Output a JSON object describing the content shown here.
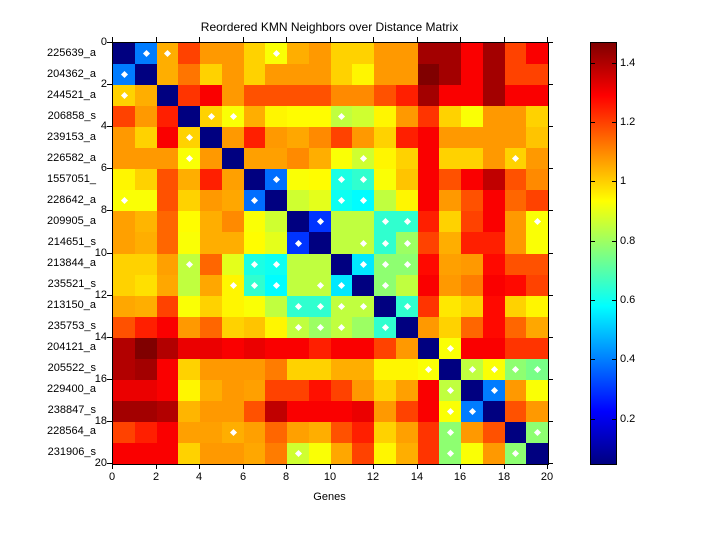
{
  "figure": {
    "title": "Reordered KMN Neighbors over Distance Matrix"
  },
  "axes": {
    "xlabel": "Genes",
    "x_tick_labels": [
      "0",
      "2",
      "4",
      "6",
      "8",
      "10",
      "12",
      "14",
      "16",
      "18",
      "20"
    ],
    "x_tick_values": [
      0,
      2,
      4,
      6,
      8,
      10,
      12,
      14,
      16,
      18,
      20
    ],
    "y_tick_labels": [
      "0",
      "2",
      "4",
      "6",
      "8",
      "10",
      "12",
      "14",
      "16",
      "18",
      "20"
    ],
    "y_tick_values": [
      0,
      2,
      4,
      6,
      8,
      10,
      12,
      14,
      16,
      18,
      20
    ]
  },
  "colorbar": {
    "tick_labels": [
      "1.4",
      "1.2",
      "1",
      "0.8",
      "0.6",
      "0.4",
      "0.2"
    ],
    "tick_values": [
      1.4,
      1.2,
      1.0,
      0.8,
      0.6,
      0.4,
      0.2
    ],
    "vmin": 0.05,
    "vmax": 1.47,
    "colormap": "jet"
  },
  "chart_data": {
    "type": "heatmap",
    "title": "Reordered KMN Neighbors over Distance Matrix",
    "xlabel": "Genes",
    "colormap": "jet",
    "clim": [
      0.05,
      1.47
    ],
    "marker_color": "#ffffff",
    "row_labels": [
      "225639_a",
      "204362_a",
      "244521_a",
      "206858_s",
      "239153_a",
      "226582_a",
      "1557051_",
      "228642_a",
      "209905_a",
      "214651_s",
      "213844_a",
      "235521_s",
      "213150_a",
      "235753_s",
      "204121_a",
      "205522_s",
      "229400_a",
      "238847_s",
      "228564_a",
      "231906_s"
    ],
    "values": [
      [
        0.05,
        0.4,
        1.05,
        1.2,
        1.08,
        1.08,
        1.0,
        0.93,
        1.05,
        1.08,
        1.0,
        1.0,
        1.08,
        1.08,
        1.42,
        1.42,
        1.3,
        1.42,
        1.2,
        1.3
      ],
      [
        0.4,
        0.05,
        1.05,
        1.13,
        1.0,
        1.08,
        1.0,
        1.08,
        1.08,
        1.08,
        1.0,
        0.95,
        1.08,
        1.08,
        1.47,
        1.42,
        1.3,
        1.42,
        1.2,
        1.2
      ],
      [
        1.0,
        1.05,
        0.05,
        1.22,
        1.3,
        1.08,
        1.18,
        1.18,
        1.18,
        1.18,
        1.1,
        1.1,
        1.18,
        1.25,
        1.42,
        1.3,
        1.3,
        1.42,
        1.3,
        1.3
      ],
      [
        1.2,
        1.08,
        1.25,
        0.05,
        1.0,
        0.93,
        1.05,
        0.95,
        0.94,
        0.94,
        0.85,
        0.87,
        0.95,
        1.08,
        1.22,
        1.0,
        0.93,
        1.08,
        1.08,
        1.0
      ],
      [
        1.08,
        1.0,
        1.3,
        1.0,
        0.05,
        1.08,
        1.25,
        1.08,
        1.06,
        1.1,
        1.2,
        1.08,
        1.0,
        1.25,
        1.3,
        1.08,
        1.08,
        1.08,
        1.08,
        1.02
      ],
      [
        1.08,
        1.08,
        1.08,
        0.93,
        1.08,
        0.05,
        1.07,
        1.07,
        1.1,
        1.05,
        0.93,
        0.87,
        0.95,
        1.0,
        1.3,
        1.0,
        1.0,
        1.08,
        1.0,
        1.08
      ],
      [
        0.95,
        1.0,
        1.18,
        1.05,
        1.25,
        1.07,
        0.05,
        0.38,
        0.93,
        0.94,
        0.62,
        0.65,
        0.93,
        1.02,
        1.3,
        1.18,
        1.3,
        1.38,
        1.18,
        1.1
      ],
      [
        0.93,
        0.93,
        1.18,
        1.0,
        1.08,
        1.06,
        0.38,
        0.05,
        0.87,
        0.9,
        0.6,
        0.58,
        0.85,
        0.95,
        1.3,
        1.08,
        1.18,
        1.3,
        1.15,
        1.2
      ],
      [
        1.07,
        1.04,
        1.15,
        0.94,
        1.05,
        1.1,
        0.93,
        0.87,
        0.05,
        0.3,
        0.85,
        0.85,
        0.65,
        0.65,
        1.25,
        1.0,
        1.2,
        1.3,
        1.08,
        0.93
      ],
      [
        1.07,
        1.05,
        1.15,
        0.93,
        1.05,
        1.05,
        0.94,
        0.9,
        0.3,
        0.05,
        0.85,
        0.85,
        0.65,
        0.8,
        1.2,
        1.05,
        1.25,
        1.25,
        1.08,
        0.93
      ],
      [
        1.0,
        1.0,
        1.07,
        0.85,
        1.15,
        0.9,
        0.62,
        0.6,
        0.85,
        0.85,
        0.05,
        0.55,
        0.78,
        0.78,
        1.28,
        1.07,
        1.08,
        1.28,
        1.18,
        1.18
      ],
      [
        1.0,
        0.98,
        1.06,
        0.85,
        1.06,
        0.95,
        0.65,
        0.58,
        0.85,
        0.85,
        0.55,
        0.05,
        0.78,
        0.85,
        1.3,
        1.08,
        1.12,
        1.3,
        1.28,
        1.2
      ],
      [
        1.06,
        1.05,
        1.2,
        0.93,
        1.0,
        0.95,
        0.93,
        0.85,
        0.65,
        0.65,
        0.85,
        0.85,
        0.05,
        0.65,
        1.22,
        0.97,
        1.0,
        1.28,
        1.0,
        0.95
      ],
      [
        1.18,
        1.25,
        1.3,
        1.08,
        1.15,
        1.0,
        1.02,
        0.95,
        0.85,
        0.8,
        0.85,
        0.8,
        0.65,
        0.05,
        1.08,
        1.0,
        1.15,
        1.28,
        1.15,
        1.06
      ],
      [
        1.4,
        1.47,
        1.4,
        1.32,
        1.32,
        1.3,
        1.32,
        1.3,
        1.3,
        1.25,
        1.3,
        1.3,
        1.2,
        1.08,
        0.05,
        0.93,
        1.3,
        1.3,
        1.22,
        1.22
      ],
      [
        1.4,
        1.42,
        1.3,
        1.0,
        1.08,
        1.08,
        1.08,
        1.12,
        1.0,
        1.0,
        1.05,
        1.05,
        0.95,
        0.95,
        0.93,
        0.05,
        0.85,
        0.93,
        0.78,
        0.75
      ],
      [
        1.32,
        1.32,
        1.3,
        0.95,
        1.05,
        1.08,
        1.07,
        1.2,
        1.2,
        1.27,
        1.2,
        1.08,
        1.0,
        1.07,
        1.3,
        0.85,
        0.05,
        0.4,
        1.08,
        0.93
      ],
      [
        1.42,
        1.42,
        1.4,
        1.04,
        1.08,
        1.08,
        1.18,
        1.38,
        1.3,
        1.3,
        1.3,
        1.32,
        1.08,
        1.2,
        1.3,
        0.93,
        0.4,
        0.05,
        1.18,
        1.08
      ],
      [
        1.2,
        1.25,
        1.3,
        1.07,
        1.07,
        1.05,
        1.07,
        1.15,
        1.07,
        1.05,
        1.18,
        1.25,
        1.0,
        1.07,
        1.22,
        0.78,
        1.08,
        1.18,
        0.05,
        0.78
      ],
      [
        1.3,
        1.3,
        1.3,
        1.0,
        1.08,
        1.08,
        1.06,
        1.12,
        0.87,
        0.93,
        1.06,
        1.2,
        0.95,
        1.05,
        1.22,
        0.78,
        0.93,
        1.08,
        0.78,
        0.05
      ]
    ],
    "neighbor_markers": [
      [
        2,
        3,
        8
      ],
      [
        1
      ],
      [
        1
      ],
      [
        5,
        6,
        11
      ],
      [
        4
      ],
      [
        4,
        12,
        19
      ],
      [
        8,
        11,
        12
      ],
      [
        1,
        7,
        11,
        12
      ],
      [
        10,
        13,
        14,
        20
      ],
      [
        9,
        12,
        13,
        14
      ],
      [
        4,
        7,
        8,
        12,
        13,
        14
      ],
      [
        6,
        7,
        8,
        10,
        11,
        13
      ],
      [
        9,
        10,
        11,
        12,
        14
      ],
      [
        9,
        10,
        11,
        13
      ],
      [
        16
      ],
      [
        15,
        17,
        18,
        19,
        20
      ],
      [
        16,
        18
      ],
      [
        16,
        17
      ],
      [
        6,
        16,
        20
      ],
      [
        9,
        16,
        19
      ]
    ]
  }
}
